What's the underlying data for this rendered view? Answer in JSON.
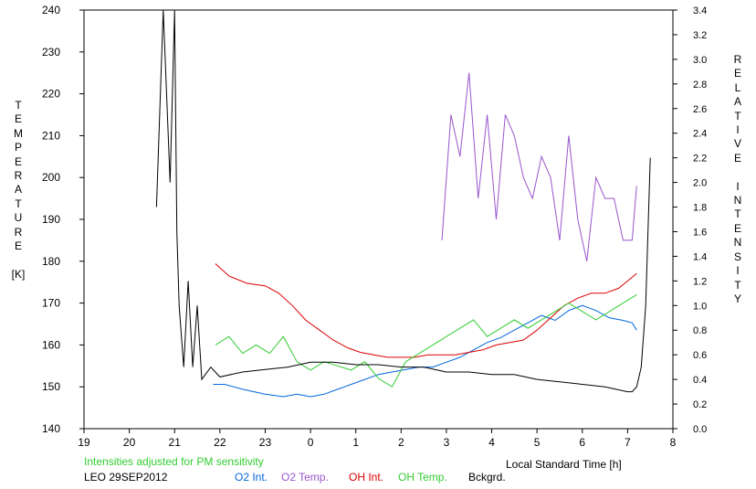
{
  "chart_data": {
    "type": "line",
    "left_axis_label": "TEMPERATURE [K]",
    "right_axis_label": "RELATIVE INTENSITY",
    "left_axis_label_letters": [
      "T",
      "E",
      "M",
      "P",
      "E",
      "R",
      "A",
      "T",
      "U",
      "R",
      "E",
      "",
      "[K]"
    ],
    "right_axis_label_letters": [
      "R",
      "E",
      "L",
      "A",
      "T",
      "I",
      "V",
      "E",
      "",
      "I",
      "N",
      "T",
      "E",
      "N",
      "S",
      "I",
      "T",
      "Y"
    ],
    "xlabel": "Local Standard Time [h]",
    "x_range": [
      19,
      32
    ],
    "x_ticks": [
      19,
      20,
      21,
      22,
      23,
      24,
      25,
      26,
      27,
      28,
      29,
      30,
      31,
      32
    ],
    "x_tick_labels": [
      "19",
      "20",
      "21",
      "22",
      "23",
      "0",
      "1",
      "2",
      "3",
      "4",
      "5",
      "6",
      "7",
      "8"
    ],
    "left_ylim": [
      140,
      240
    ],
    "left_ticks": [
      140,
      150,
      160,
      170,
      180,
      190,
      200,
      210,
      220,
      230,
      240
    ],
    "right_ylim": [
      0.0,
      3.4
    ],
    "right_ticks": [
      0.0,
      0.2,
      0.4,
      0.6,
      0.8,
      1.0,
      1.2,
      1.4,
      1.6,
      1.8,
      2.0,
      2.2,
      2.4,
      2.6,
      2.8,
      3.0,
      3.2,
      3.4
    ],
    "right_tick_labels": [
      "0.0",
      "0.2",
      "0.4",
      "0.6",
      "0.8",
      "1.0",
      "1.2",
      "1.4",
      "1.6",
      "1.8",
      "2.0",
      "2.2",
      "2.4",
      "2.6",
      "2.8",
      "3.0",
      "3.2",
      "3.4"
    ],
    "note": "Intensities adjusted for PM sensitivity",
    "station": "LEO 29SEP2012",
    "grid": false,
    "legend_position": "bottom",
    "series": [
      {
        "name": "O2 Int.",
        "axis": "right",
        "color": "#0066dd",
        "x": [
          21.85,
          22.1,
          22.5,
          23.0,
          23.4,
          23.7,
          24.0,
          24.3,
          24.6,
          24.9,
          25.2,
          25.5,
          25.8,
          26.1,
          26.4,
          26.7,
          27.0,
          27.3,
          27.6,
          27.9,
          28.2,
          28.5,
          28.8,
          29.1,
          29.4,
          29.7,
          30.0,
          30.3,
          30.6,
          30.9,
          31.1,
          31.2
        ],
        "y": [
          0.36,
          0.36,
          0.32,
          0.28,
          0.26,
          0.28,
          0.26,
          0.28,
          0.32,
          0.36,
          0.4,
          0.44,
          0.46,
          0.48,
          0.5,
          0.5,
          0.54,
          0.58,
          0.64,
          0.7,
          0.74,
          0.8,
          0.86,
          0.92,
          0.88,
          0.96,
          1.0,
          0.96,
          0.9,
          0.88,
          0.86,
          0.8
        ]
      },
      {
        "name": "O2 Temp.",
        "axis": "left",
        "color": "#9955cc",
        "x": [
          26.9,
          27.1,
          27.3,
          27.5,
          27.7,
          27.9,
          28.1,
          28.3,
          28.5,
          28.7,
          28.9,
          29.1,
          29.3,
          29.5,
          29.7,
          29.9,
          30.1,
          30.3,
          30.5,
          30.7,
          30.9,
          31.1,
          31.2
        ],
        "y": [
          185,
          215,
          205,
          225,
          195,
          215,
          190,
          215,
          210,
          200,
          195,
          205,
          200,
          185,
          210,
          190,
          180,
          200,
          195,
          195,
          185,
          185,
          198
        ]
      },
      {
        "name": "OH Int.",
        "axis": "right",
        "color": "#dd0000",
        "x": [
          21.9,
          22.2,
          22.6,
          23.0,
          23.3,
          23.6,
          23.9,
          24.2,
          24.5,
          24.8,
          25.1,
          25.4,
          25.7,
          26.0,
          26.3,
          26.6,
          26.9,
          27.2,
          27.5,
          27.8,
          28.1,
          28.4,
          28.7,
          29.0,
          29.3,
          29.6,
          29.9,
          30.2,
          30.5,
          30.8,
          31.0,
          31.2
        ],
        "y": [
          1.34,
          1.24,
          1.18,
          1.16,
          1.1,
          1.0,
          0.88,
          0.8,
          0.72,
          0.66,
          0.62,
          0.6,
          0.58,
          0.58,
          0.58,
          0.6,
          0.6,
          0.6,
          0.62,
          0.64,
          0.68,
          0.7,
          0.72,
          0.8,
          0.9,
          1.0,
          1.06,
          1.1,
          1.1,
          1.14,
          1.2,
          1.26
        ]
      },
      {
        "name": "OH Temp.",
        "axis": "left",
        "color": "#33cc33",
        "x": [
          21.9,
          22.2,
          22.5,
          22.8,
          23.1,
          23.4,
          23.7,
          24.0,
          24.3,
          24.6,
          24.9,
          25.2,
          25.5,
          25.8,
          26.1,
          26.4,
          26.7,
          27.0,
          27.3,
          27.6,
          27.9,
          28.2,
          28.5,
          28.8,
          29.1,
          29.4,
          29.7,
          30.0,
          30.3,
          30.6,
          30.9,
          31.2
        ],
        "y": [
          160,
          162,
          158,
          160,
          158,
          162,
          156,
          154,
          156,
          155,
          154,
          156,
          152,
          150,
          156,
          158,
          160,
          162,
          164,
          166,
          162,
          164,
          166,
          164,
          166,
          168,
          170,
          168,
          166,
          168,
          170,
          172
        ]
      },
      {
        "name": "Bckgrd.",
        "axis": "right",
        "color": "#000000",
        "x": [
          20.6,
          20.75,
          20.9,
          21.0,
          21.05,
          21.1,
          21.2,
          21.3,
          21.4,
          21.5,
          21.6,
          21.8,
          22.0,
          22.5,
          23.0,
          23.5,
          24.0,
          24.5,
          25.0,
          25.5,
          26.0,
          26.5,
          27.0,
          27.5,
          28.0,
          28.5,
          29.0,
          29.5,
          30.0,
          30.5,
          31.0,
          31.1,
          31.2,
          31.3,
          31.4,
          31.5
        ],
        "y": [
          1.8,
          3.4,
          2.0,
          3.4,
          1.6,
          1.0,
          0.5,
          1.2,
          0.5,
          1.0,
          0.4,
          0.5,
          0.42,
          0.46,
          0.48,
          0.5,
          0.54,
          0.54,
          0.52,
          0.52,
          0.5,
          0.5,
          0.46,
          0.46,
          0.44,
          0.44,
          0.4,
          0.38,
          0.36,
          0.34,
          0.3,
          0.3,
          0.34,
          0.5,
          1.0,
          2.2
        ]
      }
    ]
  }
}
